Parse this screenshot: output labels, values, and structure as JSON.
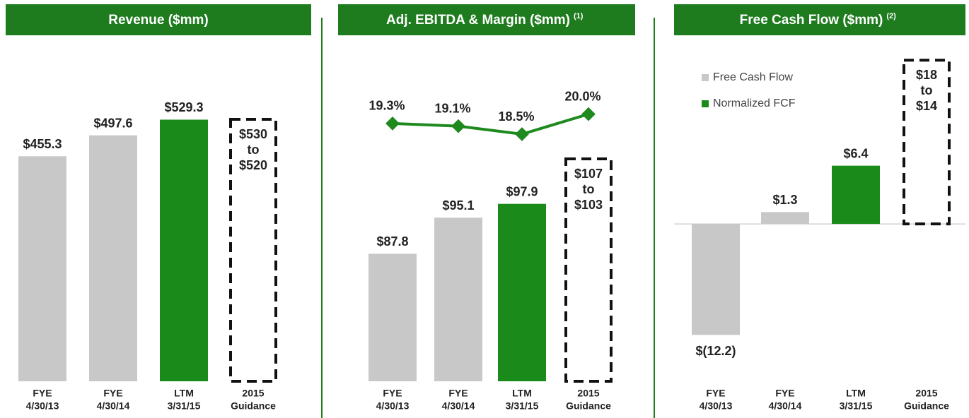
{
  "chart_data": [
    {
      "type": "bar",
      "title": "Revenue ($mm)",
      "categories": [
        [
          "FYE",
          "4/30/13"
        ],
        [
          "FYE",
          "4/30/14"
        ],
        [
          "LTM",
          "3/31/15"
        ],
        [
          "2015",
          "Guidance"
        ]
      ],
      "values": [
        455.3,
        497.6,
        529.3,
        null
      ],
      "value_labels": [
        "$455.3",
        "$497.6",
        "$529.3",
        null
      ],
      "colors": [
        "#c8c8c8",
        "#c8c8c8",
        "#1a8a1a",
        null
      ],
      "ylim": [
        0,
        600
      ],
      "guidance": {
        "values": [
          530,
          520
        ],
        "value_labels": [
          "$530",
          "$520"
        ],
        "joiner": "to"
      }
    },
    {
      "type": "bar",
      "title": "Adj. EBITDA & Margin ($mm)",
      "title_note": "(1)",
      "categories": [
        [
          "FYE",
          "4/30/13"
        ],
        [
          "FYE",
          "4/30/14"
        ],
        [
          "LTM",
          "3/31/15"
        ],
        [
          "2015",
          "Guidance"
        ]
      ],
      "values": [
        87.8,
        95.1,
        97.9,
        null
      ],
      "value_labels": [
        "$87.8",
        "$95.1",
        "$97.9",
        null
      ],
      "colors": [
        "#c8c8c8",
        "#c8c8c8",
        "#1a8a1a",
        null
      ],
      "ylim": [
        62,
        122
      ],
      "guidance": {
        "values": [
          107,
          103
        ],
        "value_labels": [
          "$107",
          "$103"
        ],
        "joiner": "to"
      },
      "line": {
        "values": [
          19.3,
          19.1,
          18.5,
          20.0
        ],
        "value_labels": [
          "19.3%",
          "19.1%",
          "18.5%",
          "20.0%"
        ],
        "color": "#1e8a1e",
        "axis": "y2"
      },
      "y2lim": [
        0,
        22.2
      ]
    },
    {
      "type": "bar",
      "title": "Free Cash Flow ($mm)",
      "title_note": "(2)",
      "categories": [
        [
          "FYE",
          "4/30/13"
        ],
        [
          "FYE",
          "4/30/14"
        ],
        [
          "LTM",
          "3/31/15"
        ],
        [
          "2015",
          "Guidance"
        ]
      ],
      "values": [
        -12.2,
        1.3,
        6.4,
        null
      ],
      "value_labels": [
        "$(12.2)",
        "$1.3",
        "$6.4",
        null
      ],
      "colors": [
        "#c8c8c8",
        "#c8c8c8",
        "#1a8a1a",
        null
      ],
      "label_colors": [
        "#222222",
        "#222222",
        "#1a8a1a",
        null
      ],
      "ylim": [
        -17.3,
        15.3
      ],
      "guidance": {
        "values": [
          18,
          14
        ],
        "value_labels": [
          "$18",
          "$14"
        ],
        "joiner": "to"
      },
      "legend": [
        {
          "name": "Free Cash Flow",
          "color": "#c8c8c8"
        },
        {
          "name": "Normalized FCF",
          "color": "#1a8a1a"
        }
      ]
    }
  ]
}
